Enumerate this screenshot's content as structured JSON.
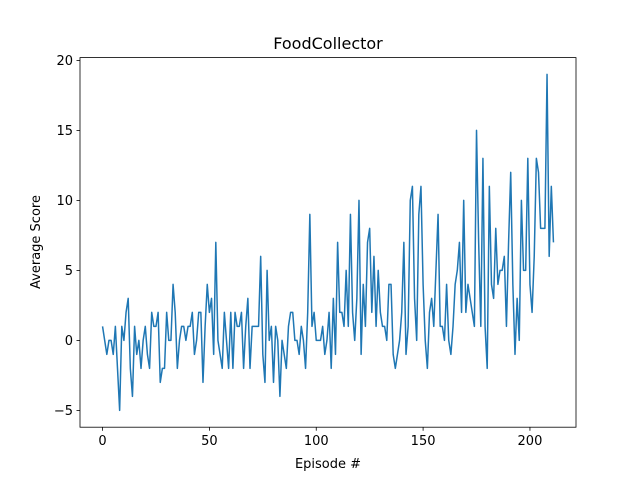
{
  "chart_data": {
    "type": "line",
    "title": "FoodCollector",
    "xlabel": "Episode #",
    "ylabel": "Average Score",
    "color": "#1f77b4",
    "x": [
      0,
      1,
      2,
      3,
      4,
      5,
      6,
      7,
      8,
      9,
      10,
      11,
      12,
      13,
      14,
      15,
      16,
      17,
      18,
      19,
      20,
      21,
      22,
      23,
      24,
      25,
      26,
      27,
      28,
      29,
      30,
      31,
      32,
      33,
      34,
      35,
      36,
      37,
      38,
      39,
      40,
      41,
      42,
      43,
      44,
      45,
      46,
      47,
      48,
      49,
      50,
      51,
      52,
      53,
      54,
      55,
      56,
      57,
      58,
      59,
      60,
      61,
      62,
      63,
      64,
      65,
      66,
      67,
      68,
      69,
      70,
      71,
      72,
      73,
      74,
      75,
      76,
      77,
      78,
      79,
      80,
      81,
      82,
      83,
      84,
      85,
      86,
      87,
      88,
      89,
      90,
      91,
      92,
      93,
      94,
      95,
      96,
      97,
      98,
      99,
      100,
      101,
      102,
      103,
      104,
      105,
      106,
      107,
      108,
      109,
      110,
      111,
      112,
      113,
      114,
      115,
      116,
      117,
      118,
      119,
      120,
      121,
      122,
      123,
      124,
      125,
      126,
      127,
      128,
      129,
      130,
      131,
      132,
      133,
      134,
      135,
      136,
      137,
      138,
      139,
      140,
      141,
      142,
      143,
      144,
      145,
      146,
      147,
      148,
      149,
      150,
      151,
      152,
      153,
      154,
      155,
      156,
      157,
      158,
      159,
      160,
      161,
      162,
      163,
      164,
      165,
      166,
      167,
      168,
      169,
      170,
      171,
      172,
      173,
      174,
      175,
      176,
      177,
      178,
      179,
      180,
      181,
      182,
      183,
      184,
      185,
      186,
      187,
      188,
      189,
      190,
      191,
      192,
      193,
      194,
      195,
      196,
      197,
      198,
      199,
      200,
      201,
      202,
      203,
      204,
      205,
      206,
      207,
      208,
      209,
      210,
      211
    ],
    "values": [
      1,
      0,
      -1,
      0,
      0,
      -1,
      1,
      -2,
      -5,
      1,
      0,
      2,
      3,
      -2,
      -4,
      1,
      -1,
      0,
      -2,
      0,
      1,
      -1,
      -2,
      2,
      1,
      1,
      2,
      -3,
      -2,
      -2,
      2,
      0,
      0,
      4,
      2,
      -2,
      0,
      1,
      1,
      0,
      1,
      1,
      2,
      -1,
      0,
      2,
      2,
      -3,
      1,
      4,
      2,
      3,
      -1,
      7,
      0,
      -1,
      -2,
      2,
      0,
      -2,
      2,
      -2,
      2,
      1,
      1,
      2,
      -2,
      1,
      3,
      -2,
      1,
      1,
      1,
      1,
      6,
      -1,
      -3,
      5,
      0,
      1,
      -3,
      1,
      0,
      -4,
      0,
      -1,
      -2,
      1,
      2,
      2,
      0,
      0,
      -1,
      1,
      0,
      -2,
      2,
      9,
      1,
      2,
      0,
      0,
      0,
      1,
      -1,
      0,
      2,
      -2,
      3,
      -1,
      7,
      2,
      2,
      1,
      5,
      1,
      9,
      2,
      0,
      3,
      10,
      -1,
      4,
      1,
      7,
      8,
      2,
      6,
      1,
      5,
      2,
      1,
      1,
      0,
      4,
      4,
      -1,
      -2,
      -1,
      0,
      2,
      7,
      -1,
      1,
      10,
      11,
      3,
      0,
      9,
      11,
      4,
      0,
      -2,
      2,
      3,
      1,
      5,
      9,
      1,
      1,
      0,
      4,
      0,
      -1,
      1,
      4,
      5,
      7,
      2,
      10,
      2,
      4,
      3,
      2,
      1,
      15,
      7,
      1,
      13,
      1,
      -2,
      11,
      4,
      3,
      8,
      4,
      5,
      5,
      6,
      1,
      7,
      12,
      4,
      -1,
      3,
      0,
      10,
      5,
      5,
      13,
      4,
      2,
      6,
      13,
      12,
      8,
      8,
      8,
      19,
      6,
      11,
      7
    ],
    "xlim": [
      -10.55,
      221.55
    ],
    "xticks": [
      0,
      50,
      100,
      150,
      200
    ],
    "ylim": [
      -6.2,
      20.2
    ],
    "yticks": [
      {
        "value": -5,
        "label": "−5"
      },
      0,
      5,
      10,
      15,
      20
    ]
  }
}
